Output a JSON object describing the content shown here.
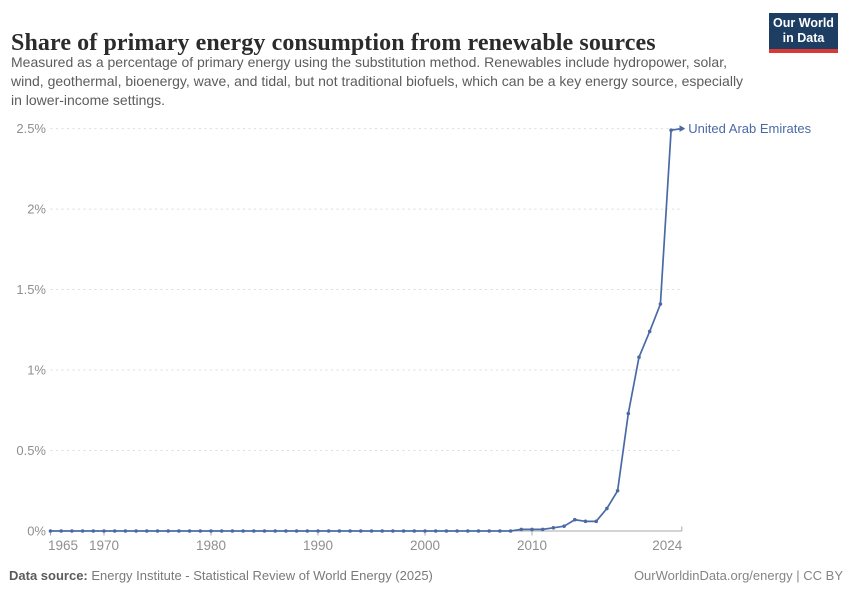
{
  "header": {
    "title": "Share of primary energy consumption from renewable sources",
    "subtitle": "Measured as a percentage of primary energy using the substitution method. Renewables include hydropower, solar, wind, geothermal, bioenergy, wave, and tidal, but not traditional biofuels, which can be a key energy source, especially in lower-income settings.",
    "logo": {
      "line1": "Our World",
      "line2": "in Data",
      "bg_color": "#1d3d63",
      "accent_color": "#d73a35"
    }
  },
  "chart_data": {
    "type": "line",
    "title": "Share of primary energy consumption from renewable sources",
    "xlabel": "",
    "ylabel": "",
    "x_range": [
      1965,
      2024
    ],
    "y_range": [
      0,
      2.5
    ],
    "grid": true,
    "legend_position": "end-of-line-label",
    "x_ticks": [
      {
        "value": 1965,
        "label": "1965"
      },
      {
        "value": 1970,
        "label": "1970"
      },
      {
        "value": 1980,
        "label": "1980"
      },
      {
        "value": 1990,
        "label": "1990"
      },
      {
        "value": 2000,
        "label": "2000"
      },
      {
        "value": 2010,
        "label": "2010"
      },
      {
        "value": 2024,
        "label": "2024"
      }
    ],
    "y_ticks": [
      {
        "value": 0,
        "label": "0%"
      },
      {
        "value": 0.5,
        "label": "0.5%"
      },
      {
        "value": 1,
        "label": "1%"
      },
      {
        "value": 1.5,
        "label": "1.5%"
      },
      {
        "value": 2,
        "label": "2%"
      },
      {
        "value": 2.5,
        "label": "2.5%"
      }
    ],
    "series": [
      {
        "name": "United Arab Emirates",
        "color": "#4a6aa6",
        "x": [
          1965,
          1966,
          1967,
          1968,
          1969,
          1970,
          1971,
          1972,
          1973,
          1974,
          1975,
          1976,
          1977,
          1978,
          1979,
          1980,
          1981,
          1982,
          1983,
          1984,
          1985,
          1986,
          1987,
          1988,
          1989,
          1990,
          1991,
          1992,
          1993,
          1994,
          1995,
          1996,
          1997,
          1998,
          1999,
          2000,
          2001,
          2002,
          2003,
          2004,
          2005,
          2006,
          2007,
          2008,
          2009,
          2010,
          2011,
          2012,
          2013,
          2014,
          2015,
          2016,
          2017,
          2018,
          2019,
          2020,
          2021,
          2022,
          2023,
          2024
        ],
        "values": [
          0,
          0,
          0,
          0,
          0,
          0,
          0,
          0,
          0,
          0,
          0,
          0,
          0,
          0,
          0,
          0,
          0,
          0,
          0,
          0,
          0,
          0,
          0,
          0,
          0,
          0,
          0,
          0,
          0,
          0,
          0,
          0,
          0,
          0,
          0,
          0,
          0,
          0,
          0,
          0,
          0,
          0,
          0,
          0,
          0.01,
          0.01,
          0.01,
          0.02,
          0.03,
          0.07,
          0.06,
          0.06,
          0.14,
          0.25,
          0.73,
          1.08,
          1.24,
          1.41,
          2.49,
          2.5
        ]
      }
    ]
  },
  "footer": {
    "source_label": "Data source:",
    "source_value": " Energy Institute - Statistical Review of World Energy (2025)",
    "rights": "OurWorldinData.org/energy | CC BY"
  }
}
